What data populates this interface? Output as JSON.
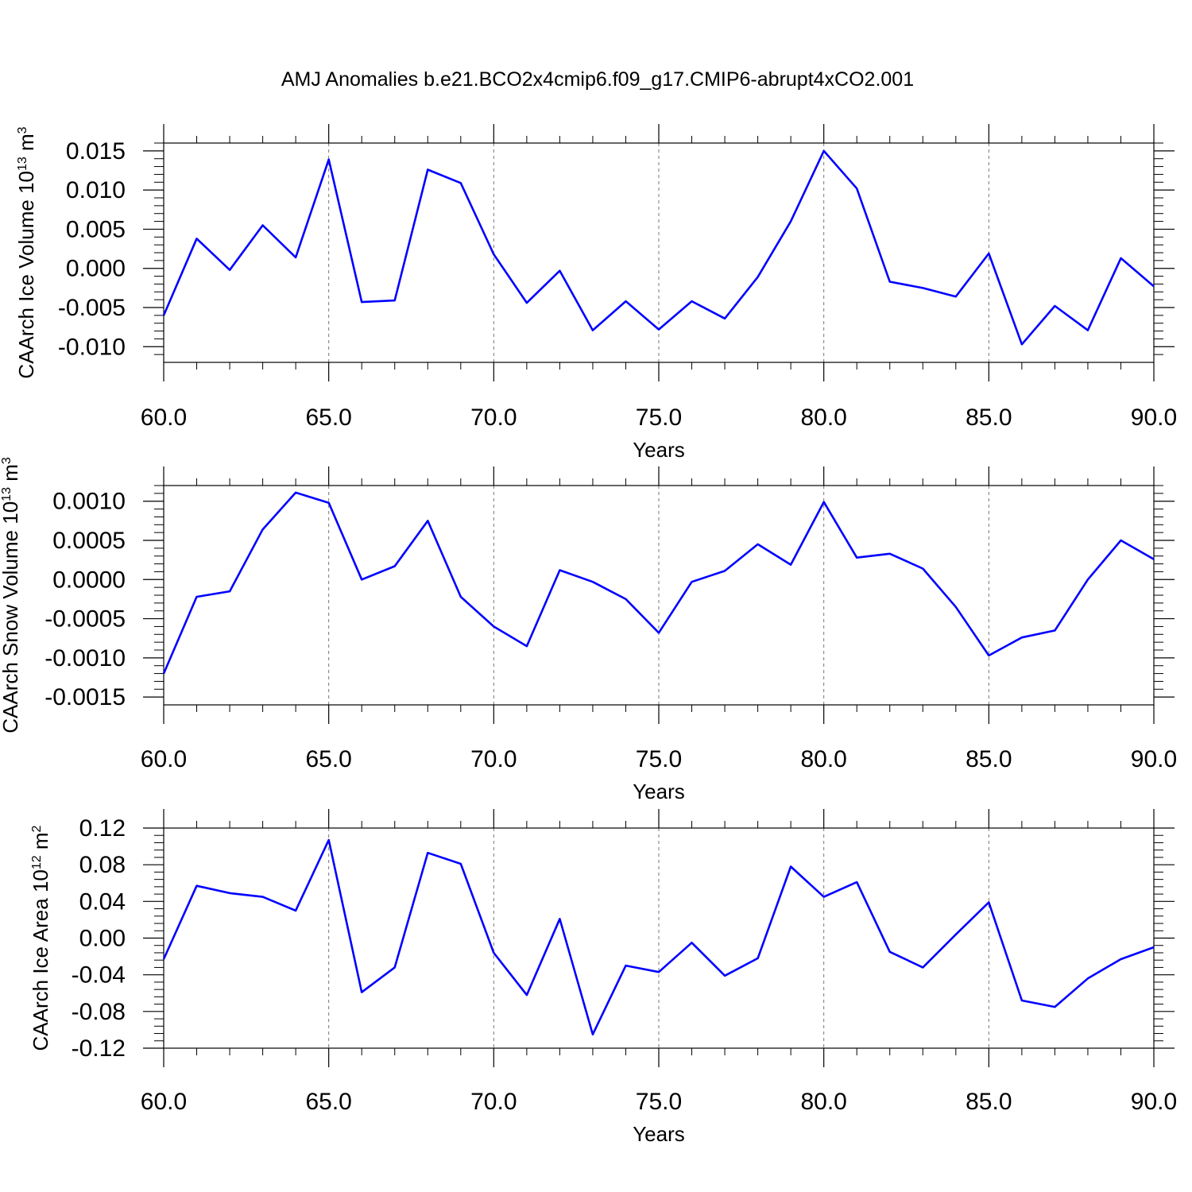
{
  "title": "AMJ Anomalies b.e21.BCO2x4cmip6.f09_g17.CMIP6-abrupt4xCO2.001",
  "line_color": "#0000ff",
  "chart_data": [
    {
      "type": "line",
      "ylabel": "CAArch Ice Volume 10",
      "ylabel_exp": "13",
      "ylabel_unit": " m",
      "ylabel_unit_exp": "3",
      "xlabel": "Years",
      "xlim": [
        60,
        90
      ],
      "ylim": [
        -0.012,
        0.016
      ],
      "x_ticks": [
        "60.0",
        "65.0",
        "70.0",
        "75.0",
        "80.0",
        "85.0",
        "90.0"
      ],
      "y_ticks": [
        {
          "v": -0.01,
          "label": "-0.010"
        },
        {
          "v": -0.005,
          "label": "-0.005"
        },
        {
          "v": 0.0,
          "label": "0.000"
        },
        {
          "v": 0.005,
          "label": "0.005"
        },
        {
          "v": 0.01,
          "label": "0.010"
        },
        {
          "v": 0.015,
          "label": "0.015"
        }
      ],
      "x": [
        60,
        61,
        62,
        63,
        64,
        65,
        66,
        67,
        68,
        69,
        70,
        71,
        72,
        73,
        74,
        75,
        76,
        77,
        78,
        79,
        80,
        81,
        82,
        83,
        84,
        85,
        86,
        87,
        88,
        89,
        90
      ],
      "values": [
        -0.006,
        0.0038,
        -0.0002,
        0.0055,
        0.0014,
        0.0139,
        -0.0043,
        -0.0041,
        0.0126,
        0.0109,
        0.0018,
        -0.0044,
        -0.0003,
        -0.0079,
        -0.0042,
        -0.0078,
        -0.0042,
        -0.0064,
        -0.0011,
        0.006,
        0.015,
        0.0102,
        -0.0017,
        -0.0025,
        -0.0036,
        0.0019,
        -0.0097,
        -0.0048,
        -0.0079,
        0.0013,
        -0.0023
      ]
    },
    {
      "type": "line",
      "ylabel": "CAArch Snow Volume 10",
      "ylabel_exp": "13",
      "ylabel_unit": " m",
      "ylabel_unit_exp": "3",
      "xlabel": "Years",
      "xlim": [
        60,
        90
      ],
      "ylim": [
        -0.0016,
        0.0012
      ],
      "x_ticks": [
        "60.0",
        "65.0",
        "70.0",
        "75.0",
        "80.0",
        "85.0",
        "90.0"
      ],
      "y_ticks": [
        {
          "v": -0.0015,
          "label": "-0.0015"
        },
        {
          "v": -0.001,
          "label": "-0.0010"
        },
        {
          "v": -0.0005,
          "label": "-0.0005"
        },
        {
          "v": 0.0,
          "label": "0.0000"
        },
        {
          "v": 0.0005,
          "label": "0.0005"
        },
        {
          "v": 0.001,
          "label": "0.0010"
        }
      ],
      "x": [
        60,
        61,
        62,
        63,
        64,
        65,
        66,
        67,
        68,
        69,
        70,
        71,
        72,
        73,
        74,
        75,
        76,
        77,
        78,
        79,
        80,
        81,
        82,
        83,
        84,
        85,
        86,
        87,
        88,
        89,
        90
      ],
      "values": [
        -0.0012,
        -0.00022,
        -0.00015,
        0.00064,
        0.00111,
        0.00098,
        0.0,
        0.00017,
        0.00075,
        -0.00022,
        -0.0006,
        -0.00085,
        0.00012,
        -3e-05,
        -0.00025,
        -0.00068,
        -3e-05,
        0.00011,
        0.00045,
        0.00019,
        0.00099,
        0.00028,
        0.00033,
        0.00014,
        -0.00035,
        -0.00097,
        -0.00074,
        -0.00065,
        0.0,
        0.0005,
        0.00026
      ]
    },
    {
      "type": "line",
      "ylabel": "CAArch Ice Area 10",
      "ylabel_exp": "12",
      "ylabel_unit": " m",
      "ylabel_unit_exp": "2",
      "xlabel": "Years",
      "xlim": [
        60,
        90
      ],
      "ylim": [
        -0.12,
        0.12
      ],
      "x_ticks": [
        "60.0",
        "65.0",
        "70.0",
        "75.0",
        "80.0",
        "85.0",
        "90.0"
      ],
      "y_ticks": [
        {
          "v": -0.12,
          "label": "-0.12"
        },
        {
          "v": -0.08,
          "label": "-0.08"
        },
        {
          "v": -0.04,
          "label": "-0.04"
        },
        {
          "v": 0.0,
          "label": "0.00"
        },
        {
          "v": 0.04,
          "label": "0.04"
        },
        {
          "v": 0.08,
          "label": "0.08"
        },
        {
          "v": 0.12,
          "label": "0.12"
        }
      ],
      "x": [
        60,
        61,
        62,
        63,
        64,
        65,
        66,
        67,
        68,
        69,
        70,
        71,
        72,
        73,
        74,
        75,
        76,
        77,
        78,
        79,
        80,
        81,
        82,
        83,
        84,
        85,
        86,
        87,
        88,
        89,
        90
      ],
      "values": [
        -0.023,
        0.057,
        0.049,
        0.045,
        0.03,
        0.107,
        -0.059,
        -0.032,
        0.093,
        0.081,
        -0.016,
        -0.062,
        0.021,
        -0.105,
        -0.03,
        -0.037,
        -0.005,
        -0.041,
        -0.022,
        0.078,
        0.045,
        0.061,
        -0.015,
        -0.032,
        0.004,
        0.039,
        -0.068,
        -0.075,
        -0.044,
        -0.023,
        -0.01
      ]
    }
  ]
}
